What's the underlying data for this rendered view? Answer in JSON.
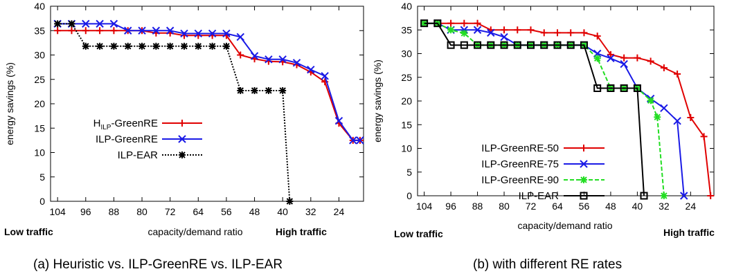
{
  "chart_data": [
    {
      "type": "line",
      "caption": "(a) Heuristic vs. ILP-GreenRE vs. ILP-EAR",
      "xlabel": "capacity/demand ratio",
      "ylabel": "energy savings (%)",
      "x_left_note": "Low traffic",
      "x_right_note": "High traffic",
      "xlim": [
        106,
        17
      ],
      "ylim": [
        0,
        40
      ],
      "x_ticks": [
        104,
        96,
        88,
        80,
        72,
        64,
        56,
        48,
        40,
        32,
        24
      ],
      "y_ticks": [
        0,
        5,
        10,
        15,
        20,
        25,
        30,
        35,
        40
      ],
      "grid": false,
      "legend_position": "middle-left",
      "series": [
        {
          "name": "H-GreenRE",
          "name_main": "H",
          "name_sub": "ILP",
          "name_rest": "-GreenRE",
          "color": "#e00000",
          "marker": "plus",
          "x": [
            104,
            100,
            96,
            92,
            88,
            84,
            80,
            76,
            72,
            68,
            64,
            60,
            56,
            52,
            48,
            44,
            40,
            36,
            32,
            28,
            24,
            20,
            18
          ],
          "y": [
            35,
            35,
            35,
            35,
            35,
            35,
            35,
            34.5,
            34.5,
            34,
            34,
            34,
            34,
            30,
            29.2,
            28.7,
            28.6,
            28,
            26.5,
            24.5,
            16,
            12.5,
            12.5
          ]
        },
        {
          "name": "ILP-GreenRE",
          "color": "#1a1ae6",
          "marker": "x",
          "x": [
            104,
            100,
            96,
            92,
            88,
            84,
            80,
            76,
            72,
            68,
            64,
            60,
            56,
            52,
            48,
            44,
            40,
            36,
            32,
            28,
            24,
            20,
            18
          ],
          "y": [
            36.4,
            36.4,
            36.4,
            36.4,
            36.4,
            35,
            35,
            35,
            35,
            34.4,
            34.4,
            34.4,
            34.4,
            33.7,
            29.8,
            29.1,
            29.1,
            28.4,
            27,
            25.7,
            16.5,
            12.5,
            12.5
          ]
        },
        {
          "name": "ILP-EAR",
          "color": "#000000",
          "marker": "star",
          "x": [
            104,
            100,
            96,
            92,
            88,
            84,
            80,
            76,
            72,
            68,
            64,
            60,
            56,
            52,
            48,
            44,
            40,
            38
          ],
          "y": [
            36.4,
            36.4,
            31.8,
            31.8,
            31.8,
            31.8,
            31.8,
            31.8,
            31.8,
            31.8,
            31.8,
            31.8,
            31.8,
            22.7,
            22.7,
            22.7,
            22.7,
            0
          ]
        }
      ]
    },
    {
      "type": "line",
      "caption": "(b) with different RE rates",
      "xlabel": "capacity/demand ratio",
      "ylabel": "energy savings (%)",
      "x_left_note": "Low traffic",
      "x_right_note": "High traffic",
      "xlim": [
        106,
        17
      ],
      "ylim": [
        0,
        40
      ],
      "x_ticks": [
        104,
        96,
        88,
        80,
        72,
        64,
        56,
        48,
        40,
        32,
        24
      ],
      "y_ticks": [
        0,
        5,
        10,
        15,
        20,
        25,
        30,
        35,
        40
      ],
      "grid": false,
      "legend_position": "bottom-left",
      "series": [
        {
          "name": "ILP-GreenRE-50",
          "color": "#e00000",
          "marker": "plus",
          "x": [
            104,
            100,
            96,
            92,
            88,
            84,
            80,
            76,
            72,
            68,
            64,
            60,
            56,
            52,
            48,
            44,
            40,
            36,
            32,
            28,
            24,
            20,
            18
          ],
          "y": [
            36.4,
            36.4,
            36.4,
            36.4,
            36.4,
            35,
            35,
            35,
            35,
            34.4,
            34.4,
            34.4,
            34.4,
            33.7,
            29.8,
            29.1,
            29.1,
            28.4,
            27,
            25.7,
            16.5,
            12.5,
            0
          ]
        },
        {
          "name": "ILP-GreenRE-75",
          "color": "#1a1ae6",
          "marker": "x",
          "x": [
            104,
            100,
            96,
            92,
            88,
            84,
            80,
            76,
            72,
            68,
            64,
            60,
            56,
            52,
            48,
            44,
            40,
            36,
            32,
            28,
            26
          ],
          "y": [
            36.4,
            36.4,
            35,
            35,
            35,
            34.4,
            33.5,
            31.8,
            31.8,
            31.8,
            31.8,
            31.8,
            31.8,
            30,
            29,
            27.8,
            22.7,
            20.5,
            18.5,
            15.8,
            0
          ]
        },
        {
          "name": "ILP-GreenRE-90",
          "color": "#22dd22",
          "marker": "star",
          "x": [
            104,
            100,
            96,
            92,
            88,
            84,
            80,
            76,
            72,
            68,
            64,
            60,
            56,
            52,
            48,
            44,
            40,
            36,
            34,
            32
          ],
          "y": [
            36.4,
            36.4,
            35,
            34.3,
            31.8,
            31.8,
            31.8,
            31.8,
            31.8,
            31.8,
            31.8,
            31.8,
            31.8,
            29,
            22.7,
            22.7,
            22.7,
            20.1,
            16.6,
            0
          ]
        },
        {
          "name": "ILP-EAR",
          "color": "#000000",
          "marker": "square",
          "x": [
            104,
            100,
            96,
            92,
            88,
            84,
            80,
            76,
            72,
            68,
            64,
            60,
            56,
            52,
            48,
            44,
            40,
            38
          ],
          "y": [
            36.4,
            36.4,
            31.8,
            31.8,
            31.8,
            31.8,
            31.8,
            31.8,
            31.8,
            31.8,
            31.8,
            31.8,
            31.8,
            22.7,
            22.7,
            22.7,
            22.7,
            0
          ]
        }
      ]
    }
  ]
}
